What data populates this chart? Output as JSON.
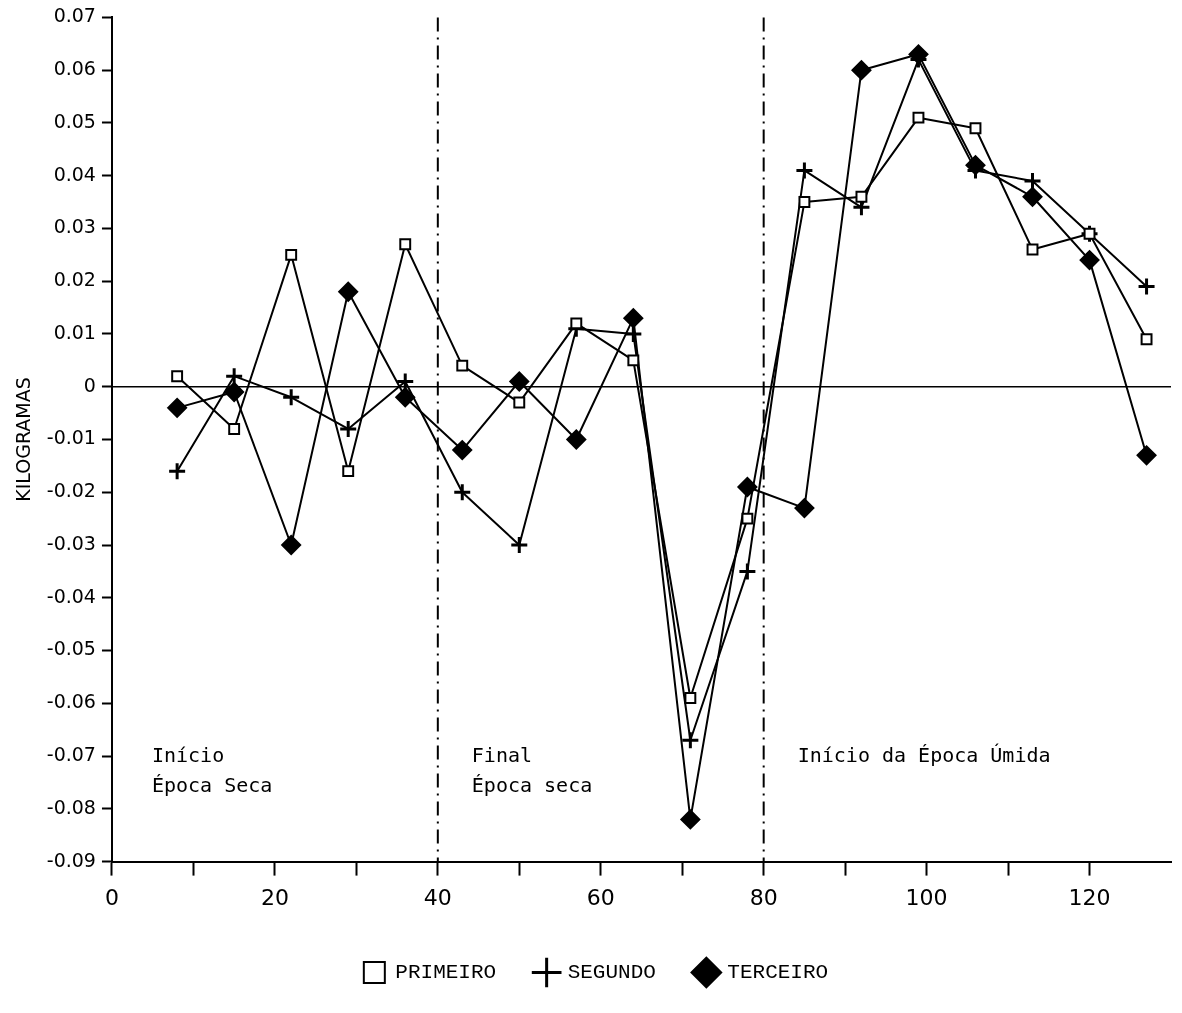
{
  "chart_data": {
    "type": "line",
    "ylabel": "KILOGRAMAS",
    "x": [
      8,
      15,
      22,
      29,
      36,
      43,
      50,
      57,
      64,
      71,
      78,
      85,
      92,
      99,
      106,
      113,
      120,
      127
    ],
    "series": [
      {
        "name": "PRIMEIRO",
        "color": "#000000",
        "marker": "square",
        "values": [
          0.002,
          -0.008,
          0.025,
          -0.016,
          0.027,
          0.004,
          -0.003,
          0.012,
          0.005,
          -0.059,
          -0.025,
          0.035,
          0.036,
          0.051,
          0.049,
          0.026,
          0.029,
          0.009
        ]
      },
      {
        "name": "SEGUNDO",
        "color": "#000000",
        "marker": "cross",
        "values": [
          -0.016,
          0.002,
          -0.002,
          -0.008,
          0.001,
          -0.02,
          -0.03,
          0.011,
          0.01,
          -0.067,
          -0.035,
          0.041,
          0.034,
          0.062,
          0.041,
          0.039,
          0.029,
          0.019
        ]
      },
      {
        "name": "TERCEIRO",
        "color": "#000000",
        "marker": "diamond",
        "values": [
          -0.004,
          -0.001,
          -0.03,
          0.018,
          -0.002,
          -0.012,
          0.001,
          -0.01,
          0.013,
          -0.082,
          -0.019,
          -0.023,
          0.06,
          0.063,
          0.042,
          0.036,
          0.024,
          -0.013
        ]
      }
    ],
    "xlim": [
      0,
      130
    ],
    "xticks": [
      0,
      {
        "value": 10,
        "label": null
      },
      20,
      {
        "value": 30,
        "label": null
      },
      40,
      {
        "value": 50,
        "label": null
      },
      60,
      {
        "value": 70,
        "label": null
      },
      80,
      {
        "value": 90,
        "label": null
      },
      100,
      {
        "value": 110,
        "label": null
      },
      120
    ],
    "ylim": [
      -0.09,
      0.07
    ],
    "yticks": [
      -0.09,
      -0.08,
      -0.07,
      -0.06,
      -0.05,
      -0.04,
      -0.03,
      -0.02,
      -0.01,
      0,
      0.01,
      0.02,
      0.03,
      0.04,
      0.05,
      0.06,
      0.07
    ],
    "ref_lines": [
      {
        "axis": "x",
        "value": 40,
        "line_style": "dashed"
      },
      {
        "axis": "x",
        "value": 80,
        "line_style": "dashed"
      },
      {
        "axis": "y",
        "value": 0,
        "line_style": "solid"
      }
    ],
    "annotations": [
      "Início\nÉpoca Seca",
      "Final\nÉpoca seca",
      "Início da Época Úmida"
    ],
    "grid": false,
    "legend": "bottom",
    "line_style": "solid"
  }
}
